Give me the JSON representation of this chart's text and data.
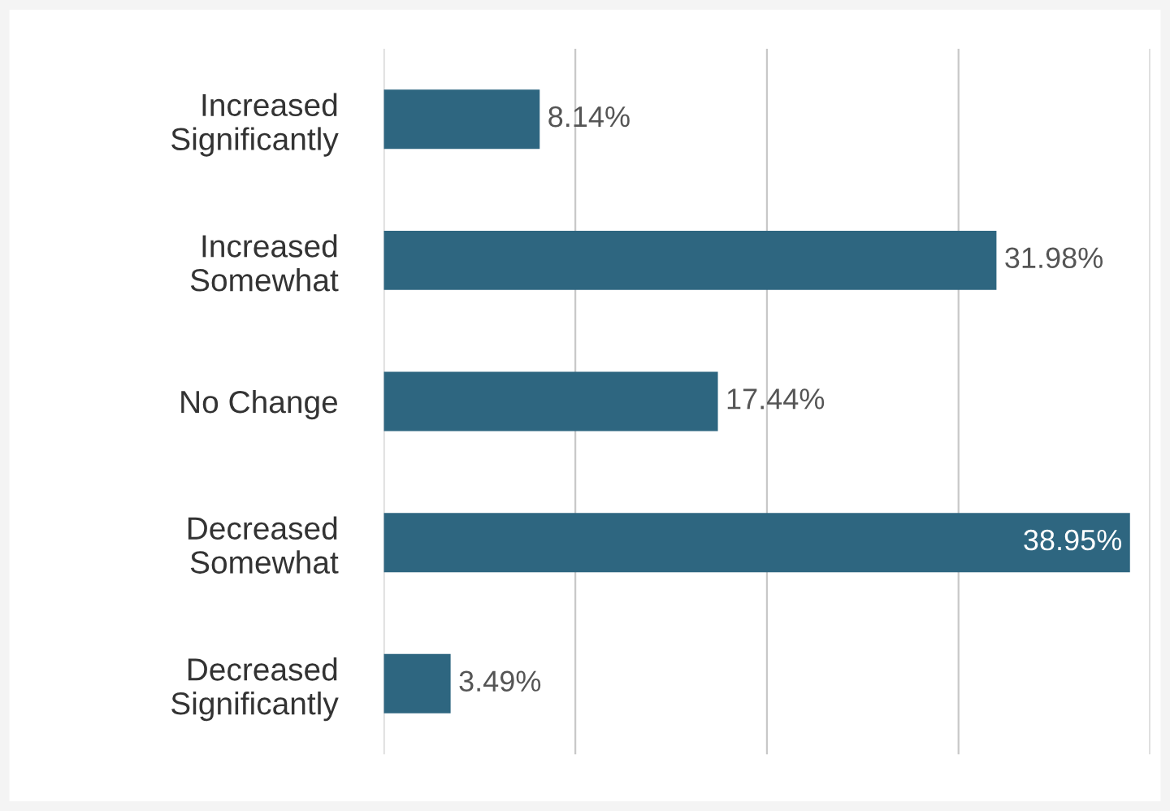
{
  "chart_data": {
    "type": "bar",
    "orientation": "horizontal",
    "categories": [
      "Increased\nSignificantly",
      "Increased\nSomewhat",
      "No Change",
      "Decreased\nSomewhat",
      "Decreased\nSignificantly"
    ],
    "values": [
      8.14,
      31.98,
      17.44,
      38.95,
      3.49
    ],
    "value_labels": [
      "8.14%",
      "31.98%",
      "17.44%",
      "38.95%",
      "3.49%"
    ],
    "color": "#2e6680",
    "xlim": [
      0,
      40
    ],
    "xticks": [
      {
        "value": 0,
        "label": null
      },
      {
        "value": 10,
        "label": null
      },
      {
        "value": 20,
        "label": null
      },
      {
        "value": 30,
        "label": null
      },
      {
        "value": 40,
        "label": null
      }
    ],
    "grid": "x",
    "tick_labels": "y"
  }
}
